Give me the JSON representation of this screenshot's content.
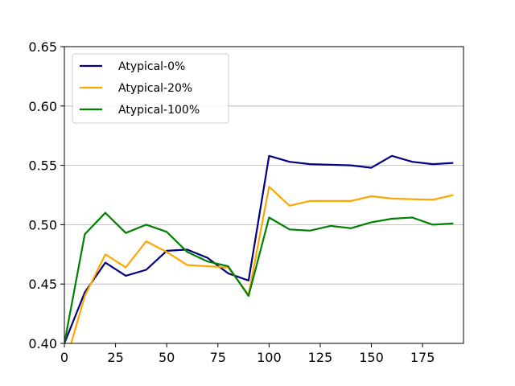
{
  "chart_data": {
    "type": "line",
    "title": "",
    "xlabel": "",
    "ylabel": "",
    "xlim": [
      0,
      195
    ],
    "ylim": [
      0.4,
      0.65
    ],
    "xticks": [
      0,
      25,
      50,
      75,
      100,
      125,
      150,
      175
    ],
    "yticks": [
      0.4,
      0.45,
      0.5,
      0.55,
      0.6,
      0.65
    ],
    "xtick_labels": [
      "0",
      "25",
      "50",
      "75",
      "100",
      "125",
      "150",
      "175"
    ],
    "ytick_labels": [
      "0.40",
      "0.45",
      "0.50",
      "0.55",
      "0.60",
      "0.65"
    ],
    "grid": "horizontal",
    "legend_position": "top-left",
    "x": [
      0,
      10,
      20,
      30,
      40,
      50,
      60,
      70,
      80,
      90,
      100,
      110,
      120,
      130,
      140,
      150,
      160,
      170,
      180,
      190
    ],
    "series": [
      {
        "name": "Atypical-0%",
        "color": "#000080",
        "values": [
          0.4,
          0.443,
          0.468,
          0.457,
          0.462,
          0.478,
          0.479,
          0.472,
          0.459,
          0.453,
          0.558,
          0.553,
          0.551,
          0.5505,
          0.55,
          0.548,
          0.558,
          0.553,
          0.551,
          0.552
        ]
      },
      {
        "name": "Atypical-20%",
        "color": "#FFA500",
        "values": [
          0.38,
          0.44,
          0.475,
          0.464,
          0.486,
          0.477,
          0.466,
          0.465,
          0.464,
          0.441,
          0.532,
          0.516,
          0.52,
          0.52,
          0.52,
          0.524,
          0.522,
          0.5215,
          0.521,
          0.525
        ]
      },
      {
        "name": "Atypical-100%",
        "color": "#008000",
        "values": [
          0.4,
          0.492,
          0.51,
          0.493,
          0.5,
          0.494,
          0.477,
          0.469,
          0.465,
          0.44,
          0.506,
          0.496,
          0.495,
          0.499,
          0.497,
          0.502,
          0.505,
          0.506,
          0.5,
          0.501
        ]
      }
    ]
  }
}
